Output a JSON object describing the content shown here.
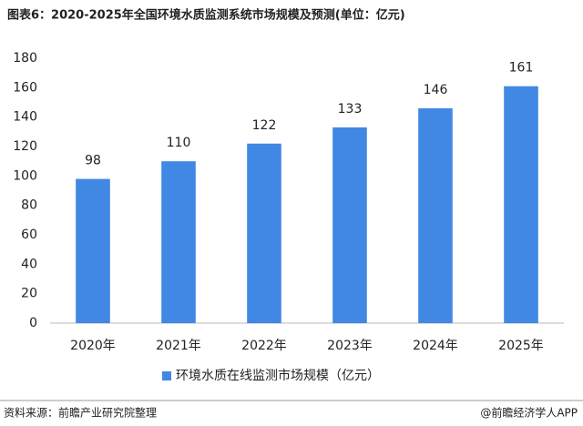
{
  "chart_data": {
    "type": "bar",
    "title": "图表6：2020-2025年全国环境水质监测系统市场规模及预测(单位：亿元)",
    "categories": [
      "2020年",
      "2021年",
      "2022年",
      "2023年",
      "2024年",
      "2025年"
    ],
    "series": [
      {
        "name": "环境水质在线监测市场规模（亿元）",
        "color": "#4088e3",
        "values": [
          98,
          110,
          122,
          133,
          146,
          161
        ]
      }
    ],
    "ylim": [
      0,
      180
    ],
    "yticks": [
      0,
      20,
      40,
      60,
      80,
      100,
      120,
      140,
      160,
      180
    ],
    "grid": false,
    "legend": "bottom"
  },
  "footer": {
    "source": "资料来源：前瞻产业研究院整理",
    "brand": "@前瞻经济学人APP"
  }
}
